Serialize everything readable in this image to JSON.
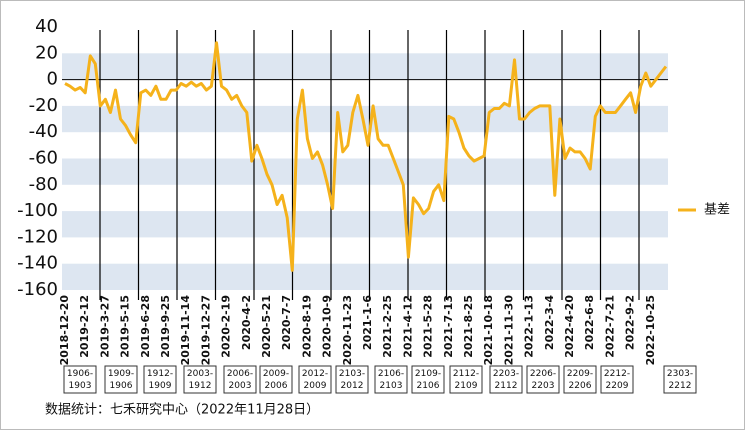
{
  "chart_data": {
    "type": "line",
    "source": "数据统计：七禾研究中心（2022年11月28日）",
    "categories": [
      "2018-12-20",
      null,
      null,
      null,
      "2019-2-12",
      null,
      null,
      null,
      "2019-3-27",
      null,
      null,
      null,
      "2019-5-15",
      null,
      null,
      null,
      "2019-6-28",
      null,
      null,
      null,
      "2019-9-25",
      null,
      null,
      null,
      "2019-11-14",
      null,
      null,
      null,
      "2019-12-27",
      null,
      null,
      null,
      "2020-2-19",
      null,
      null,
      null,
      "2020-4-2",
      null,
      null,
      null,
      "2020-5-21",
      null,
      null,
      null,
      "2020-7-7",
      null,
      null,
      null,
      "2020-8-19",
      null,
      null,
      null,
      "2020-10-9",
      null,
      null,
      null,
      "2020-11-23",
      null,
      null,
      null,
      "2021-1-6",
      null,
      null,
      null,
      "2021-2-25",
      null,
      null,
      null,
      "2021-4-12",
      null,
      null,
      null,
      "2021-5-28",
      null,
      null,
      null,
      "2021-7-13",
      null,
      null,
      null,
      "2021-8-25",
      null,
      null,
      null,
      "2021-10-18",
      null,
      null,
      null,
      "2021-11-30",
      null,
      null,
      null,
      "2022-1-13",
      null,
      null,
      null,
      "2022-3-4",
      null,
      null,
      null,
      "2022-4-20",
      null,
      null,
      null,
      "2022-6-8",
      null,
      null,
      null,
      "2022-7-21",
      null,
      null,
      null,
      "2022-9-2",
      null,
      null,
      null,
      "2022-10-25",
      null,
      null,
      null
    ],
    "series": [
      {
        "name": "基差",
        "color": "#f5b21b",
        "values": [
          -3,
          -5,
          -8,
          -6,
          -10,
          18,
          12,
          -20,
          -15,
          -25,
          -8,
          -30,
          -35,
          -42,
          -48,
          -10,
          -8,
          -12,
          -5,
          -15,
          -15,
          -8,
          -8,
          -3,
          -5,
          -2,
          -5,
          -3,
          -8,
          -5,
          28,
          -5,
          -8,
          -15,
          -12,
          -20,
          -25,
          -62,
          -50,
          -60,
          -72,
          -80,
          -95,
          -88,
          -105,
          -145,
          -30,
          -8,
          -45,
          -60,
          -55,
          -65,
          -80,
          -98,
          -25,
          -55,
          -50,
          -25,
          -12,
          -30,
          -50,
          -20,
          -45,
          -50,
          -50,
          -60,
          -70,
          -80,
          -135,
          -90,
          -95,
          -102,
          -98,
          -85,
          -80,
          -92,
          -28,
          -30,
          -40,
          -52,
          -58,
          -62,
          -60,
          -58,
          -25,
          -22,
          -22,
          -18,
          -20,
          15,
          -30,
          -30,
          -25,
          -22,
          -20,
          -20,
          -20,
          -88,
          -30,
          -60,
          -52,
          -55,
          -55,
          -60,
          -68,
          -28,
          -20,
          -25,
          -25,
          -25,
          -20,
          -15,
          -10,
          -25,
          -5,
          5,
          -5,
          0,
          5,
          10
        ]
      }
    ],
    "contracts": [
      "1906-\n1903",
      "1909-\n1906",
      "1912-\n1909",
      "2003-\n1912",
      "2006-\n2003",
      "2009-\n2006",
      "2012-\n2009",
      "2103-\n2012",
      "2106-\n2103",
      "2109-\n2106",
      "2112-\n2109",
      "2203-\n2112",
      "2206-\n2203",
      "2209-\n2206",
      "2212-\n2209",
      "2303-\n2212"
    ],
    "ylim": [
      -160,
      40
    ],
    "yticks": [
      -160,
      -140,
      -120,
      -100,
      -80,
      -60,
      -40,
      -20,
      0,
      20,
      40
    ],
    "grid": "bands",
    "band_color": "#dde6f1",
    "legend": "right"
  }
}
